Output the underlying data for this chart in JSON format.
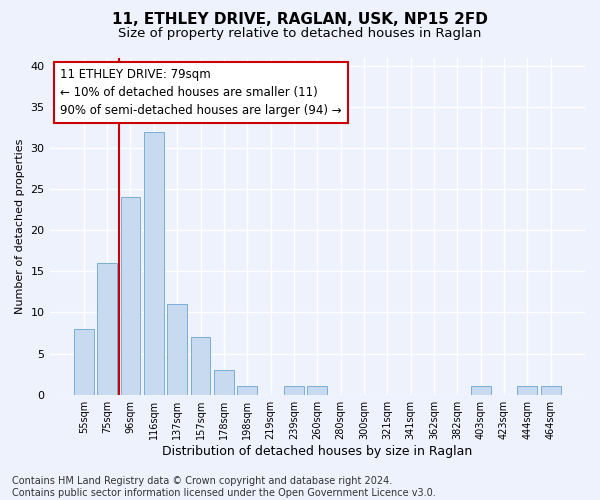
{
  "title1": "11, ETHLEY DRIVE, RAGLAN, USK, NP15 2FD",
  "title2": "Size of property relative to detached houses in Raglan",
  "xlabel": "Distribution of detached houses by size in Raglan",
  "ylabel": "Number of detached properties",
  "categories": [
    "55sqm",
    "75sqm",
    "96sqm",
    "116sqm",
    "137sqm",
    "157sqm",
    "178sqm",
    "198sqm",
    "219sqm",
    "239sqm",
    "260sqm",
    "280sqm",
    "300sqm",
    "321sqm",
    "341sqm",
    "362sqm",
    "382sqm",
    "403sqm",
    "423sqm",
    "444sqm",
    "464sqm"
  ],
  "values": [
    8,
    16,
    24,
    32,
    11,
    7,
    3,
    1,
    0,
    1,
    1,
    0,
    0,
    0,
    0,
    0,
    0,
    1,
    0,
    1,
    1
  ],
  "bar_color": "#c8daf0",
  "bar_edge_color": "#7aaed4",
  "annotation_text": "11 ETHLEY DRIVE: 79sqm\n← 10% of detached houses are smaller (11)\n90% of semi-detached houses are larger (94) →",
  "annotation_box_facecolor": "#ffffff",
  "annotation_box_edge_color": "#cc0000",
  "vline_x": 1.5,
  "vline_color": "#cc0000",
  "ylim": [
    0,
    41
  ],
  "yticks": [
    0,
    5,
    10,
    15,
    20,
    25,
    30,
    35,
    40
  ],
  "footnote": "Contains HM Land Registry data © Crown copyright and database right 2024.\nContains public sector information licensed under the Open Government Licence v3.0.",
  "background_color": "#eef2fc",
  "grid_color": "#ffffff",
  "title1_fontsize": 11,
  "title2_fontsize": 9.5,
  "annotation_fontsize": 8.5,
  "footnote_fontsize": 7,
  "ylabel_fontsize": 8,
  "xlabel_fontsize": 9
}
